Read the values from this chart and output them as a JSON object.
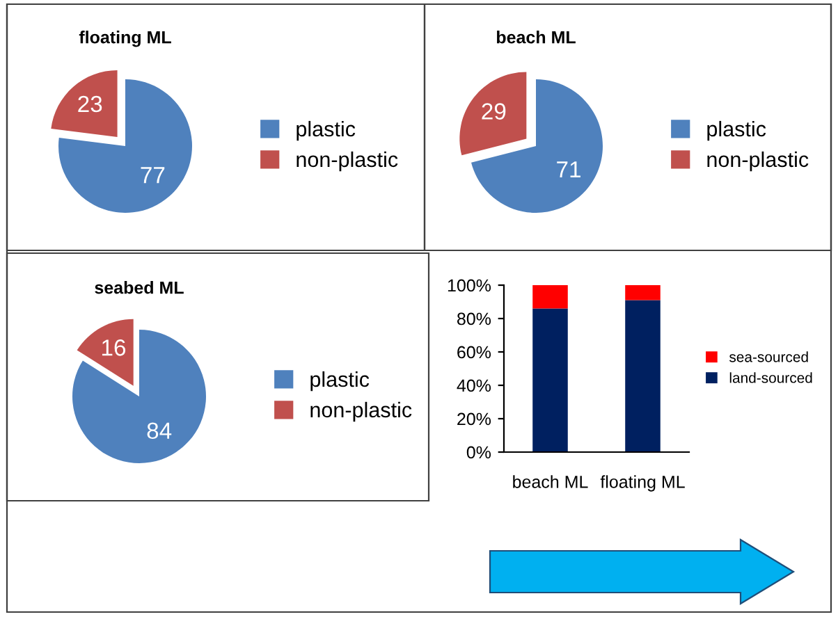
{
  "chart_data": [
    {
      "type": "pie",
      "title": "floating ML",
      "categories": [
        "plastic",
        "non-plastic"
      ],
      "values": [
        77,
        23
      ],
      "colors": [
        "#4f81bd",
        "#c0504d"
      ],
      "data_labels": true,
      "legend": "right"
    },
    {
      "type": "pie",
      "title": "beach ML",
      "categories": [
        "plastic",
        "non-plastic"
      ],
      "values": [
        71,
        29
      ],
      "colors": [
        "#4f81bd",
        "#c0504d"
      ],
      "data_labels": true,
      "legend": "right"
    },
    {
      "type": "pie",
      "title": "seabed ML",
      "categories": [
        "plastic",
        "non-plastic"
      ],
      "values": [
        84,
        16
      ],
      "colors": [
        "#4f81bd",
        "#c0504d"
      ],
      "data_labels": true,
      "legend": "right"
    },
    {
      "type": "bar",
      "stacked": true,
      "categories": [
        "beach ML",
        "floating ML"
      ],
      "ylim": [
        0,
        100
      ],
      "yticks": [
        {
          "value": 0,
          "label": "0%"
        },
        {
          "value": 20,
          "label": "20%"
        },
        {
          "value": 40,
          "label": "40%"
        },
        {
          "value": 60,
          "label": "60%"
        },
        {
          "value": 80,
          "label": "80%"
        },
        {
          "value": 100,
          "label": "100%"
        }
      ],
      "legend": "right",
      "grid": false,
      "series": [
        {
          "name": "land-sourced",
          "color": "#002060",
          "values": [
            86,
            91
          ]
        },
        {
          "name": "sea-sourced",
          "color": "#ff0000",
          "values": [
            14,
            9
          ]
        }
      ]
    }
  ]
}
